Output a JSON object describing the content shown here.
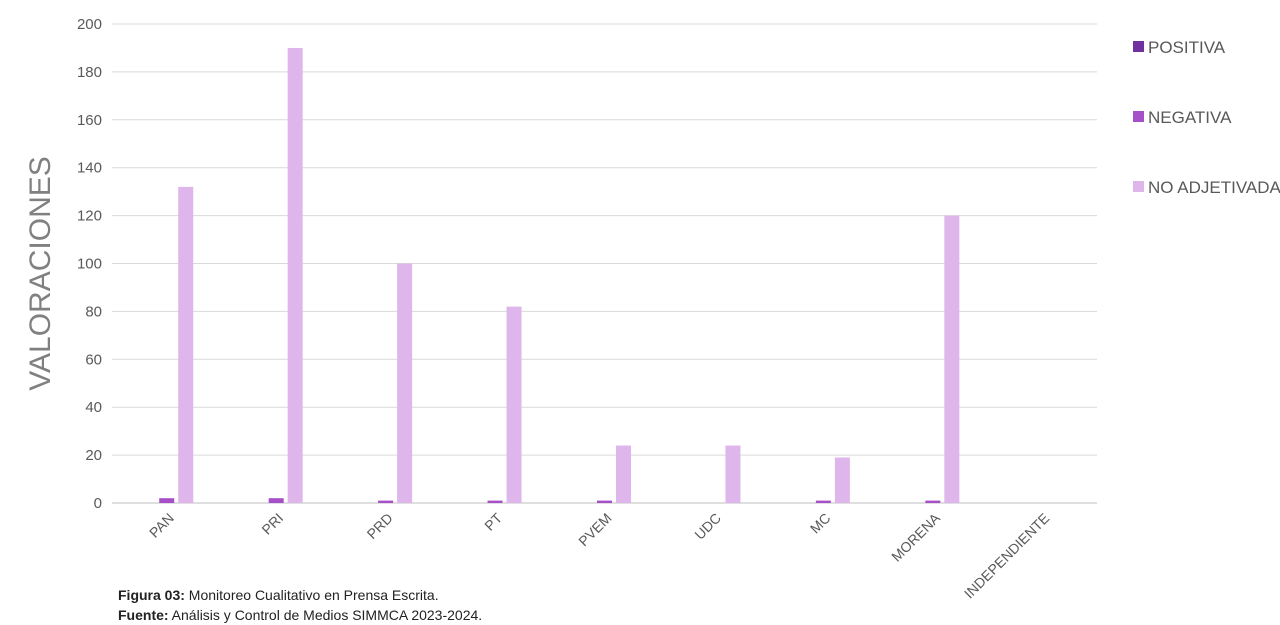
{
  "chart_data": {
    "type": "bar",
    "title": "",
    "xlabel": "",
    "ylabel": "VALORACIONES",
    "ylim": [
      0,
      200
    ],
    "yticks": [
      0,
      20,
      40,
      60,
      80,
      100,
      120,
      140,
      160,
      180,
      200
    ],
    "grid": true,
    "legend_position": "right",
    "categories": [
      "PAN",
      "PRI",
      "PRD",
      "PT",
      "PVEM",
      "UDC",
      "MC",
      "MORENA",
      "INDEPENDIENTE"
    ],
    "series": [
      {
        "name": "POSITIVA",
        "color": "#7030a0",
        "values": [
          0,
          0,
          0,
          0,
          0,
          0,
          0,
          0,
          0
        ]
      },
      {
        "name": "NEGATIVA",
        "color": "#a64fc9",
        "values": [
          2,
          2,
          1,
          1,
          1,
          0,
          1,
          1,
          0
        ]
      },
      {
        "name": "NO ADJETIVADA",
        "color": "#dfb6ec",
        "values": [
          132,
          190,
          100,
          82,
          24,
          24,
          19,
          120,
          0
        ]
      }
    ]
  },
  "caption": {
    "figure_label": "Figura 03:",
    "figure_text": " Monitoreo Cualitativo en Prensa Escrita.",
    "source_label": "Fuente:",
    "source_text": " Análisis y Control de Medios SIMMCA 2023-2024."
  }
}
